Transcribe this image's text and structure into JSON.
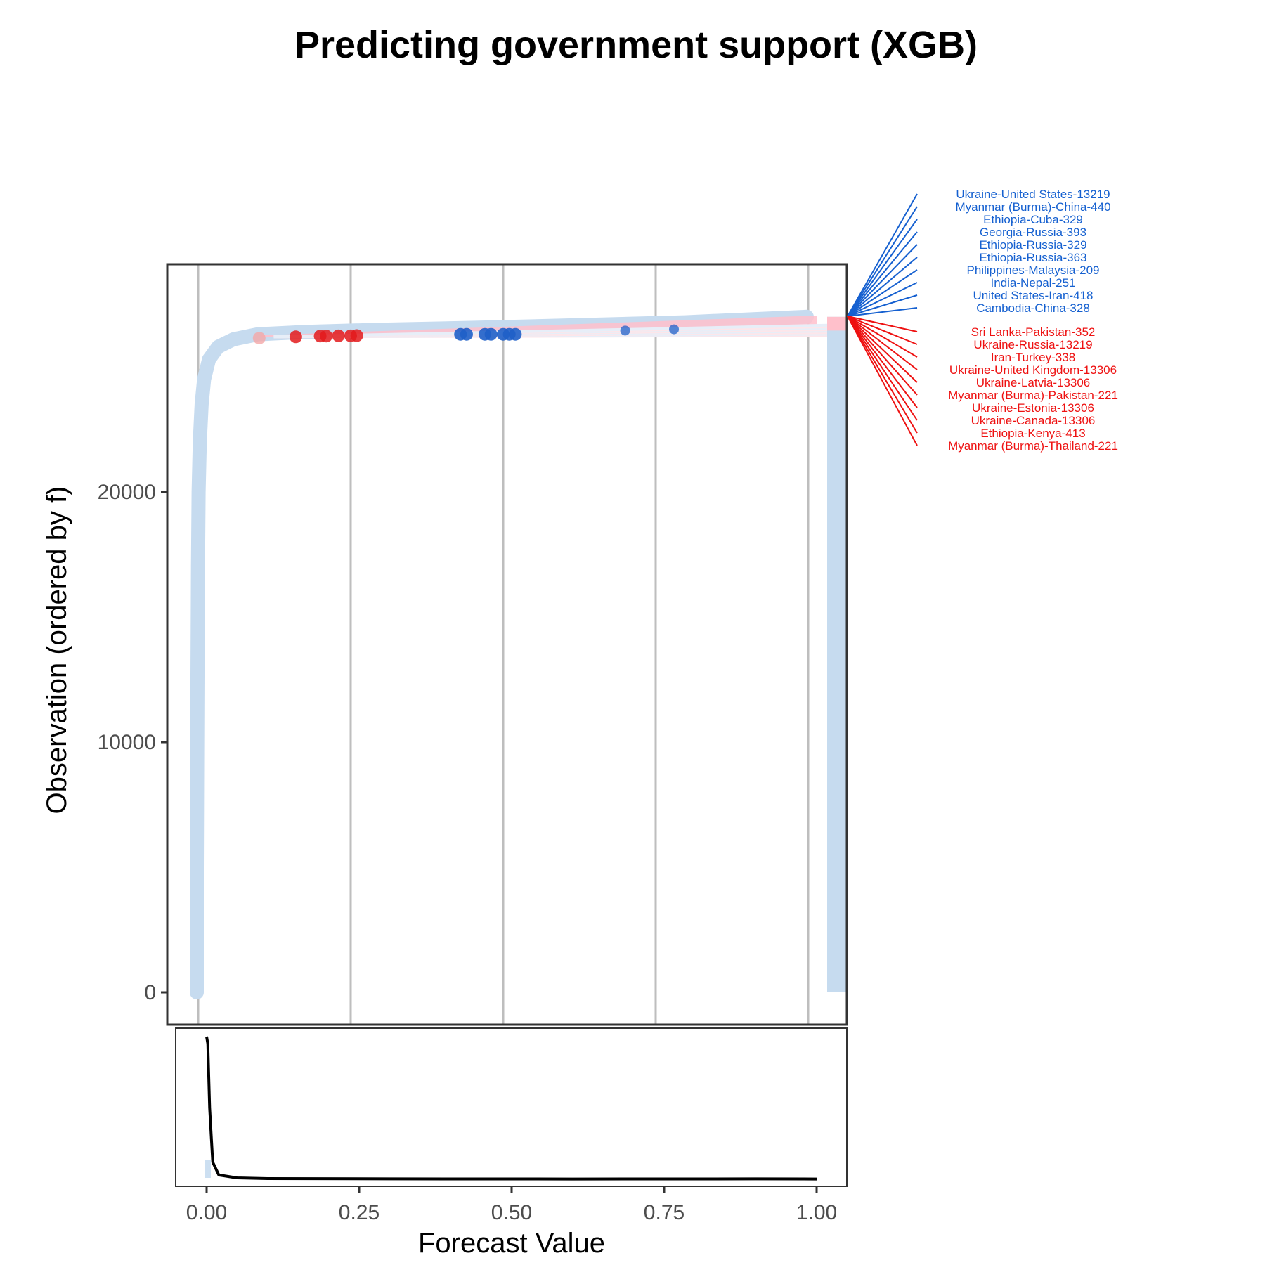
{
  "chart_data": {
    "type": "scatter",
    "title": "Predicting government support (XGB)",
    "xlabel": "Forecast Value",
    "ylabel": "Observation (ordered by f)",
    "xlim": [
      0,
      1
    ],
    "ylim": [
      0,
      27000
    ],
    "x_ticks": [
      "0.00",
      "0.25",
      "0.50",
      "0.75",
      "1.00"
    ],
    "x_tick_values": [
      0,
      0.25,
      0.5,
      0.75,
      1.0
    ],
    "y_ticks": [
      "0",
      "10000",
      "20000"
    ],
    "y_tick_values": [
      0,
      10000,
      20000
    ],
    "grid": "vertical",
    "colors": {
      "no_event": "#c6dbef",
      "event_actual": "#1f5fc8",
      "event_predicted_miss": "#e31a1c",
      "no_event_band": "#ffc0cb",
      "positive_label": "#1560d0",
      "negative_label": "#ee1111",
      "density_line": "#000000"
    },
    "ordered_forecast_curve": {
      "x": [
        0.0,
        0.0,
        0.001,
        0.002,
        0.003,
        0.005,
        0.008,
        0.012,
        0.02,
        0.035,
        0.06,
        0.1,
        0.18,
        0.3,
        0.45,
        0.6,
        0.8,
        1.0
      ],
      "y": [
        0,
        5000,
        12000,
        17000,
        20000,
        22000,
        23500,
        24500,
        25300,
        25800,
        26100,
        26300,
        26400,
        26480,
        26560,
        26650,
        26780,
        27000
      ]
    },
    "observed_events_blue": {
      "x": [
        0.43,
        0.44,
        0.47,
        0.48,
        0.5,
        0.51,
        0.52,
        0.7,
        0.78
      ],
      "y": [
        26300,
        26300,
        26300,
        26300,
        26300,
        26300,
        26300,
        26450,
        26500
      ]
    },
    "missed_events_red": {
      "x": [
        0.16,
        0.2,
        0.21,
        0.25,
        0.26,
        0.23
      ],
      "y": [
        26200,
        26230,
        26230,
        26240,
        26250,
        26240
      ]
    },
    "density": {
      "x": [
        0.0,
        0.002,
        0.005,
        0.01,
        0.02,
        0.05,
        0.1,
        0.3,
        0.6,
        0.9,
        1.0
      ],
      "y": [
        1.0,
        0.95,
        0.5,
        0.12,
        0.03,
        0.01,
        0.005,
        0.003,
        0.002,
        0.003,
        0.002
      ]
    },
    "annotations_positive": [
      "Ukraine-United States-13219",
      "Myanmar (Burma)-China-440",
      "Ethiopia-Cuba-329",
      "Georgia-Russia-393",
      "Ethiopia-Russia-329",
      "Ethiopia-Russia-363",
      "Philippines-Malaysia-209",
      "India-Nepal-251",
      "United States-Iran-418",
      "Cambodia-China-328"
    ],
    "annotations_negative": [
      "Sri Lanka-Pakistan-352",
      "Ukraine-Russia-13219",
      "Iran-Turkey-338",
      "Ukraine-United Kingdom-13306",
      "Ukraine-Latvia-13306",
      "Myanmar (Burma)-Pakistan-221",
      "Ukraine-Estonia-13306",
      "Ukraine-Canada-13306",
      "Ethiopia-Kenya-413",
      "Myanmar (Burma)-Thailand-221"
    ]
  }
}
